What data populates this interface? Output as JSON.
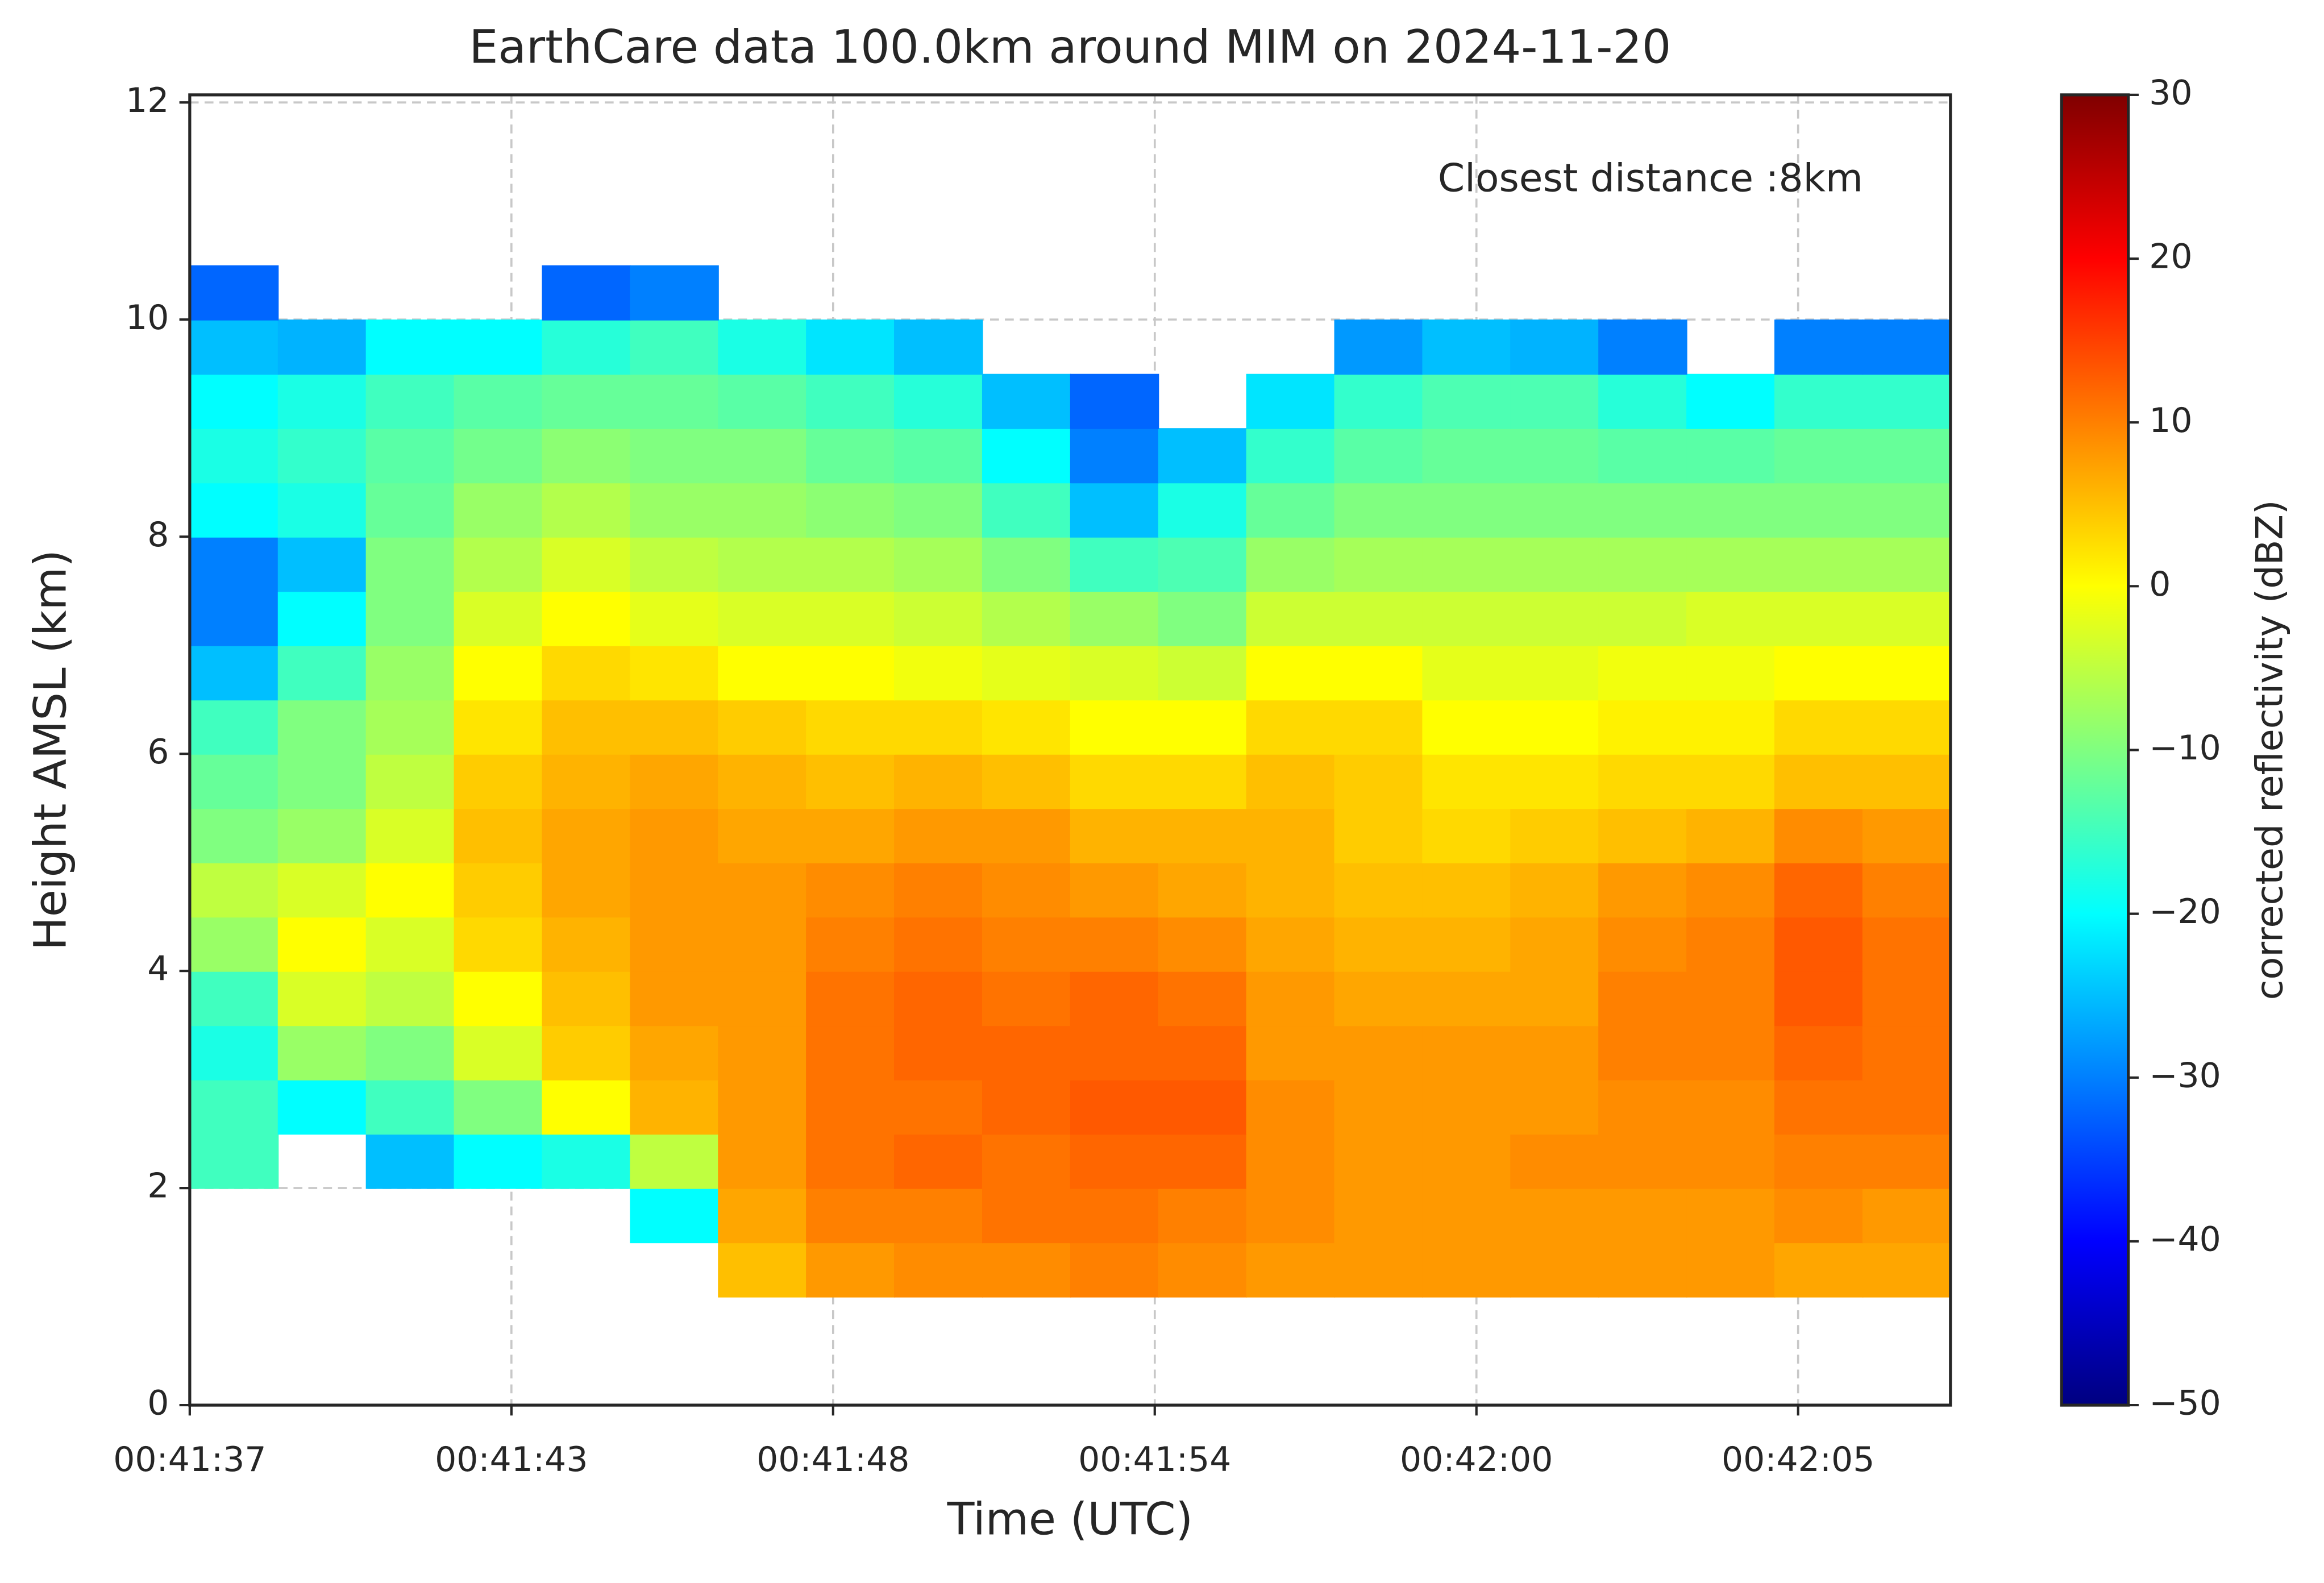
{
  "chart_data": {
    "type": "heatmap",
    "title": "EarthCare data 100.0km around MIM on 2024-11-20",
    "xlabel": "Time (UTC)",
    "ylabel": "Height AMSL (km)",
    "colorbar_label": "corrected reflectivity (dBZ)",
    "annotation": "Closest distance :8km",
    "colormap": "jet",
    "grid": true,
    "xlim": [
      0,
      31.2
    ],
    "xticks": [
      {
        "value": 0,
        "label": "00:41:37"
      },
      {
        "value": 5.7,
        "label": "00:41:43"
      },
      {
        "value": 11.4,
        "label": "00:41:48"
      },
      {
        "value": 17.1,
        "label": "00:41:54"
      },
      {
        "value": 22.8,
        "label": "00:42:00"
      },
      {
        "value": 28.5,
        "label": "00:42:05"
      }
    ],
    "ylim": [
      0,
      12.07
    ],
    "yticks": [
      0,
      2,
      4,
      6,
      8,
      10,
      12
    ],
    "clim": [
      -50,
      30
    ],
    "cticks": [
      {
        "value": -50,
        "label": "−50"
      },
      {
        "value": -40,
        "label": "−40"
      },
      {
        "value": -30,
        "label": "−30"
      },
      {
        "value": -20,
        "label": "−20"
      },
      {
        "value": -10,
        "label": "−10"
      },
      0,
      10,
      20,
      30
    ],
    "xbins": [
      0,
      1.56,
      3.12,
      4.68,
      6.24,
      7.8,
      9.36,
      10.92,
      12.48,
      14.04,
      15.6,
      17.16,
      18.72,
      20.28,
      21.84,
      23.4,
      24.96,
      26.52,
      28.08,
      29.64,
      31.2
    ],
    "ybins": [
      0,
      0.5,
      1,
      1.5,
      2,
      2.5,
      3,
      3.5,
      4,
      4.5,
      5,
      5.5,
      6,
      6.5,
      7,
      7.5,
      8,
      8.5,
      9,
      9.5,
      10,
      10.5
    ],
    "values": [
      [
        null,
        null,
        null,
        null,
        null,
        null,
        null,
        null,
        null,
        null,
        null,
        null,
        null,
        null,
        null,
        null,
        null,
        null,
        null,
        null
      ],
      [
        null,
        null,
        null,
        null,
        null,
        null,
        null,
        null,
        null,
        null,
        null,
        null,
        null,
        null,
        null,
        null,
        null,
        null,
        null,
        null
      ],
      [
        null,
        null,
        null,
        null,
        null,
        null,
        5,
        8,
        9,
        9,
        10,
        9,
        8,
        8,
        8,
        8,
        8,
        8,
        7,
        7
      ],
      [
        null,
        null,
        null,
        null,
        null,
        -20,
        7,
        10,
        10,
        11,
        11,
        10,
        9,
        8,
        8,
        8,
        8,
        8,
        9,
        8
      ],
      [
        -15,
        null,
        -25,
        -20,
        -18,
        -5,
        8,
        11,
        12,
        11,
        12,
        12,
        9,
        8,
        8,
        9,
        9,
        9,
        10,
        10
      ],
      [
        -15,
        -20,
        -15,
        -10,
        0,
        6,
        8,
        11,
        11,
        12,
        13,
        13,
        9,
        8,
        8,
        8,
        9,
        9,
        11,
        11
      ],
      [
        -18,
        -8,
        -10,
        -3,
        4,
        7,
        8,
        11,
        12,
        12,
        12,
        12,
        8,
        8,
        8,
        8,
        10,
        10,
        12,
        11
      ],
      [
        -15,
        -3,
        -5,
        0,
        5,
        8,
        8,
        11,
        12,
        11,
        12,
        11,
        8,
        7,
        7,
        7,
        10,
        10,
        13,
        11
      ],
      [
        -8,
        0,
        -3,
        3,
        6,
        8,
        8,
        10,
        11,
        10,
        10,
        9,
        7,
        6,
        6,
        7,
        9,
        10,
        13,
        11
      ],
      [
        -5,
        -3,
        0,
        4,
        7,
        8,
        8,
        9,
        10,
        9,
        8,
        7,
        6,
        5,
        5,
        6,
        8,
        9,
        12,
        10
      ],
      [
        -10,
        -8,
        -3,
        5,
        7,
        8,
        7,
        7,
        8,
        8,
        6,
        6,
        6,
        4,
        3,
        4,
        5,
        6,
        9,
        8
      ],
      [
        -12,
        -10,
        -5,
        4,
        6,
        7,
        6,
        5,
        6,
        5,
        3,
        3,
        5,
        4,
        2,
        2,
        3,
        3,
        5,
        5
      ],
      [
        -15,
        -10,
        -7,
        2,
        5,
        5,
        4,
        3,
        3,
        2,
        0,
        0,
        3,
        3,
        0,
        0,
        1,
        1,
        3,
        3
      ],
      [
        -25,
        -15,
        -8,
        0,
        3,
        2,
        0,
        0,
        -1,
        -2,
        -3,
        -4,
        0,
        0,
        -2,
        -2,
        -1,
        -1,
        0,
        0
      ],
      [
        -30,
        -20,
        -10,
        -3,
        0,
        -2,
        -3,
        -3,
        -4,
        -6,
        -8,
        -10,
        -4,
        -4,
        -4,
        -4,
        -4,
        -3,
        -3,
        -3
      ],
      [
        -30,
        -25,
        -10,
        -6,
        -3,
        -5,
        -6,
        -6,
        -7,
        -10,
        -15,
        -14,
        -8,
        -7,
        -7,
        -7,
        -7,
        -7,
        -7,
        -7
      ],
      [
        -20,
        -18,
        -12,
        -8,
        -6,
        -8,
        -8,
        -9,
        -10,
        -15,
        -25,
        -18,
        -12,
        -10,
        -10,
        -10,
        -10,
        -10,
        -10,
        -10
      ],
      [
        -18,
        -16,
        -13,
        -11,
        -9,
        -10,
        -10,
        -12,
        -13,
        -20,
        -30,
        -25,
        -16,
        -13,
        -12,
        -12,
        -13,
        -13,
        -12,
        -12
      ],
      [
        -20,
        -18,
        -15,
        -13,
        -12,
        -12,
        -13,
        -15,
        -17,
        -25,
        -32,
        null,
        -22,
        -16,
        -14,
        -14,
        -17,
        -20,
        -16,
        -16
      ],
      [
        -25,
        -26,
        -20,
        -20,
        -17,
        -15,
        -18,
        -22,
        -25,
        null,
        null,
        null,
        null,
        -28,
        -25,
        -26,
        -30,
        null,
        -30,
        -30
      ],
      [
        -32,
        null,
        null,
        null,
        -32,
        -30,
        null,
        null,
        null,
        null,
        null,
        null,
        null,
        null,
        null,
        null,
        null,
        null,
        null,
        null
      ]
    ]
  }
}
